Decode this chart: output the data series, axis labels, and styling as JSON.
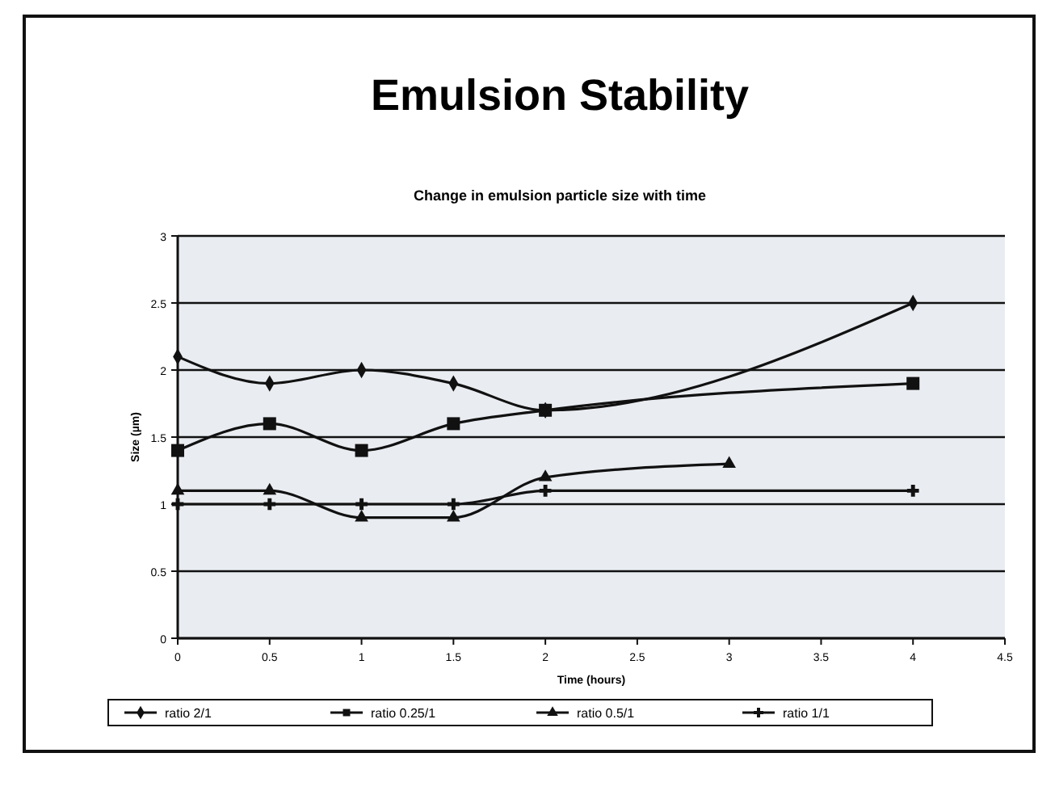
{
  "chart_data": {
    "type": "line",
    "title": "Emulsion Stability",
    "subtitle": "Change in emulsion particle size with time",
    "xlabel": "Time (hours)",
    "ylabel": "Size (µm)",
    "xlim": [
      0,
      4.5
    ],
    "xticks": [
      0,
      0.5,
      1,
      1.5,
      2,
      2.5,
      3,
      3.5,
      4,
      4.5
    ],
    "ylim": [
      0,
      3
    ],
    "yticks": [
      0,
      0.5,
      1,
      1.5,
      2,
      2.5,
      3
    ],
    "grid": "y",
    "legend": "bottom",
    "line_style": "solid",
    "series": [
      {
        "name": "ratio 2/1",
        "color": "#111111",
        "marker": "diamond",
        "x": [
          0,
          0.5,
          1,
          1.5,
          2,
          4
        ],
        "values": [
          2.1,
          1.9,
          2,
          1.9,
          1.7,
          2.5
        ]
      },
      {
        "name": "ratio 0.25/1",
        "color": "#111111",
        "marker": "square",
        "x": [
          0,
          0.5,
          1,
          1.5,
          2,
          4
        ],
        "values": [
          1.4,
          1.6,
          1.4,
          1.6,
          1.7,
          1.9
        ]
      },
      {
        "name": "ratio 0.5/1",
        "color": "#111111",
        "marker": "triangle",
        "x": [
          0,
          0.5,
          1,
          1.5,
          2,
          3
        ],
        "values": [
          1.1,
          1.1,
          0.9,
          0.9,
          1.2,
          1.3
        ]
      },
      {
        "name": "ratio 1/1",
        "color": "#111111",
        "marker": "cross",
        "x": [
          0,
          0.5,
          1,
          1.5,
          2,
          4
        ],
        "values": [
          1,
          1,
          1,
          1,
          1.1,
          1.1
        ]
      }
    ]
  }
}
